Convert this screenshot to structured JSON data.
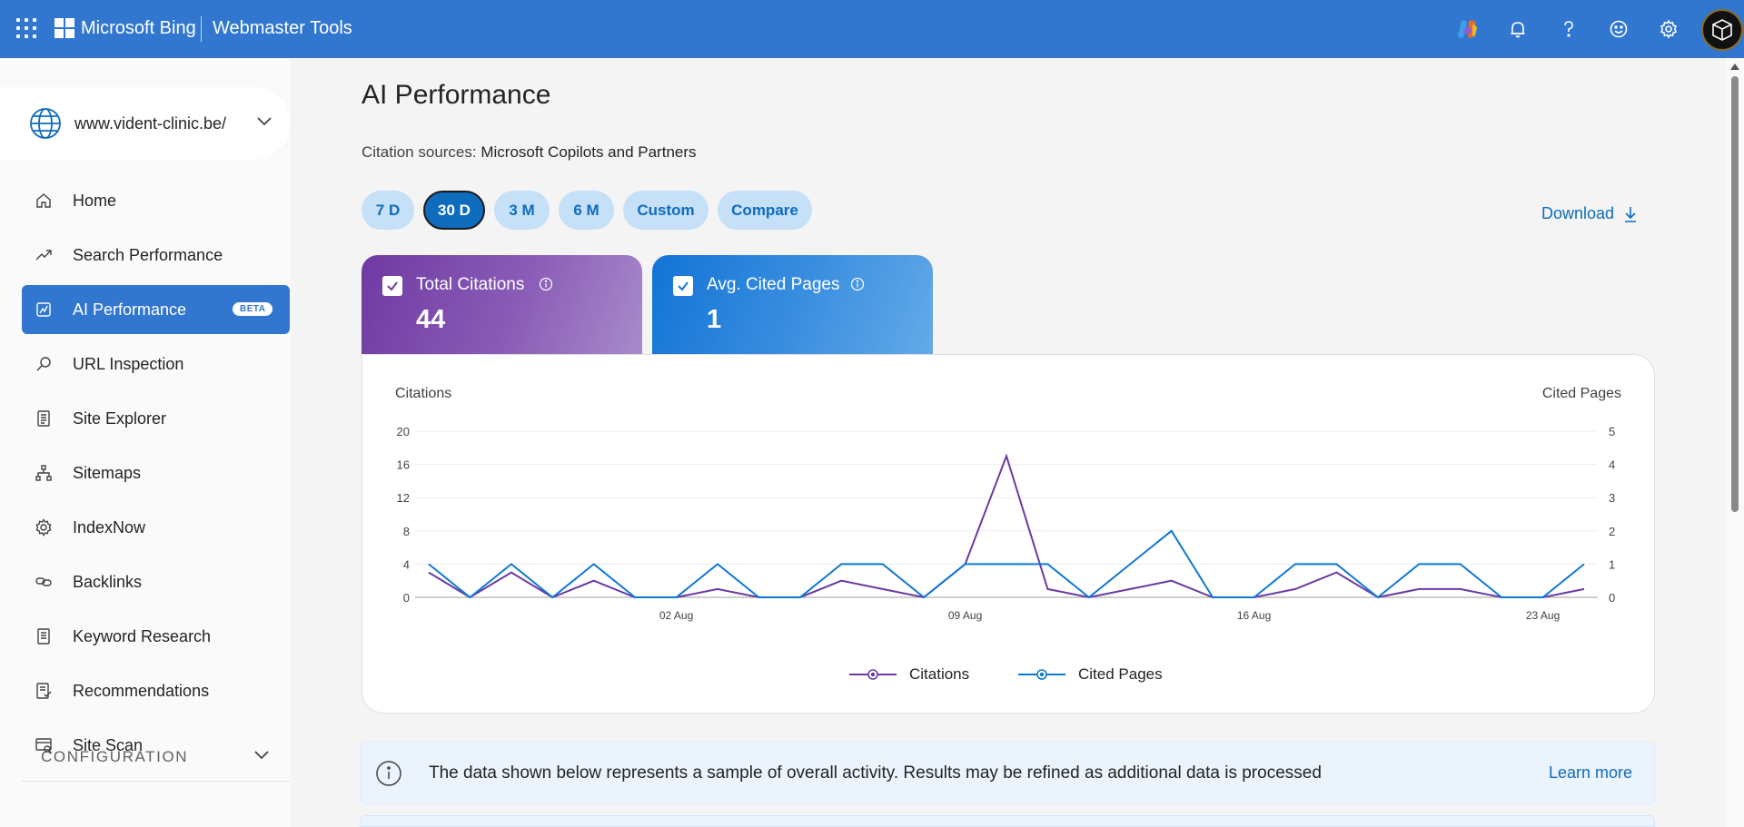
{
  "header": {
    "brand": "Microsoft Bing",
    "product": "Webmaster Tools",
    "icons": [
      "apps-waffle-icon",
      "copilot-icon",
      "notification-bell-icon",
      "help-icon",
      "feedback-smiley-icon",
      "settings-gear-icon",
      "user-avatar"
    ],
    "bar_color": "#3277cf"
  },
  "sidebar": {
    "site": "www.vident-clinic.be/",
    "items": [
      {
        "label": "Home",
        "icon": "home-icon"
      },
      {
        "label": "Search Performance",
        "icon": "trend-icon"
      },
      {
        "label": "AI Performance",
        "icon": "ai-chart-icon",
        "badge": "BETA",
        "active": true
      },
      {
        "label": "URL Inspection",
        "icon": "search-icon"
      },
      {
        "label": "Site Explorer",
        "icon": "document-list-icon"
      },
      {
        "label": "Sitemaps",
        "icon": "sitemap-icon"
      },
      {
        "label": "IndexNow",
        "icon": "gear-icon"
      },
      {
        "label": "Backlinks",
        "icon": "link-icon"
      },
      {
        "label": "Keyword Research",
        "icon": "document-icon"
      },
      {
        "label": "Recommendations",
        "icon": "checklist-icon"
      },
      {
        "label": "Site Scan",
        "icon": "scan-icon"
      }
    ],
    "section": "CONFIGURATION"
  },
  "main": {
    "title": "AI Performance",
    "citation_label": "Citation sources:",
    "citation_value": "Microsoft Copilots and Partners",
    "ranges": [
      "7 D",
      "30 D",
      "3 M",
      "6 M",
      "Custom",
      "Compare"
    ],
    "selected_range": "30 D",
    "download_label": "Download",
    "metrics": [
      {
        "label": "Total Citations",
        "value": "44",
        "checked": true,
        "color": "#6f3aa3"
      },
      {
        "label": "Avg. Cited Pages",
        "value": "1",
        "checked": true,
        "color": "#1274d6"
      }
    ],
    "banner": {
      "message": "The data shown below represents a sample of overall activity. Results may be refined as additional data is processed",
      "link": "Learn more"
    }
  },
  "chart_data": {
    "type": "line",
    "ylabel": "Citations",
    "y2label": "Cited Pages",
    "ylim": [
      0,
      20
    ],
    "y2lim": [
      0,
      5
    ],
    "yticks": [
      0,
      4,
      8,
      12,
      16,
      20
    ],
    "y2ticks": [
      0,
      1,
      2,
      3,
      4,
      5
    ],
    "xtick_labels": [
      "02 Aug",
      "09 Aug",
      "16 Aug",
      "23 Aug"
    ],
    "xtick_index": [
      6,
      13,
      20,
      27
    ],
    "x_count": 29,
    "grid": true,
    "legend_position": "bottom-center",
    "series": [
      {
        "name": "Citations",
        "axis": "left",
        "color": "#6a3aa3",
        "values": [
          3,
          0,
          3,
          0,
          2,
          0,
          0,
          1,
          0,
          0,
          2,
          1,
          0,
          4,
          17,
          1,
          0,
          1,
          2,
          0,
          0,
          1,
          3,
          0,
          1,
          1,
          0,
          0,
          1
        ]
      },
      {
        "name": "Cited Pages",
        "axis": "right",
        "color": "#0f78d4",
        "values": [
          1,
          0,
          1,
          0,
          1,
          0,
          0,
          1,
          0,
          0,
          1,
          1,
          0,
          1,
          1,
          1,
          0,
          1,
          2,
          0,
          0,
          1,
          1,
          0,
          1,
          1,
          0,
          0,
          1
        ]
      }
    ]
  }
}
